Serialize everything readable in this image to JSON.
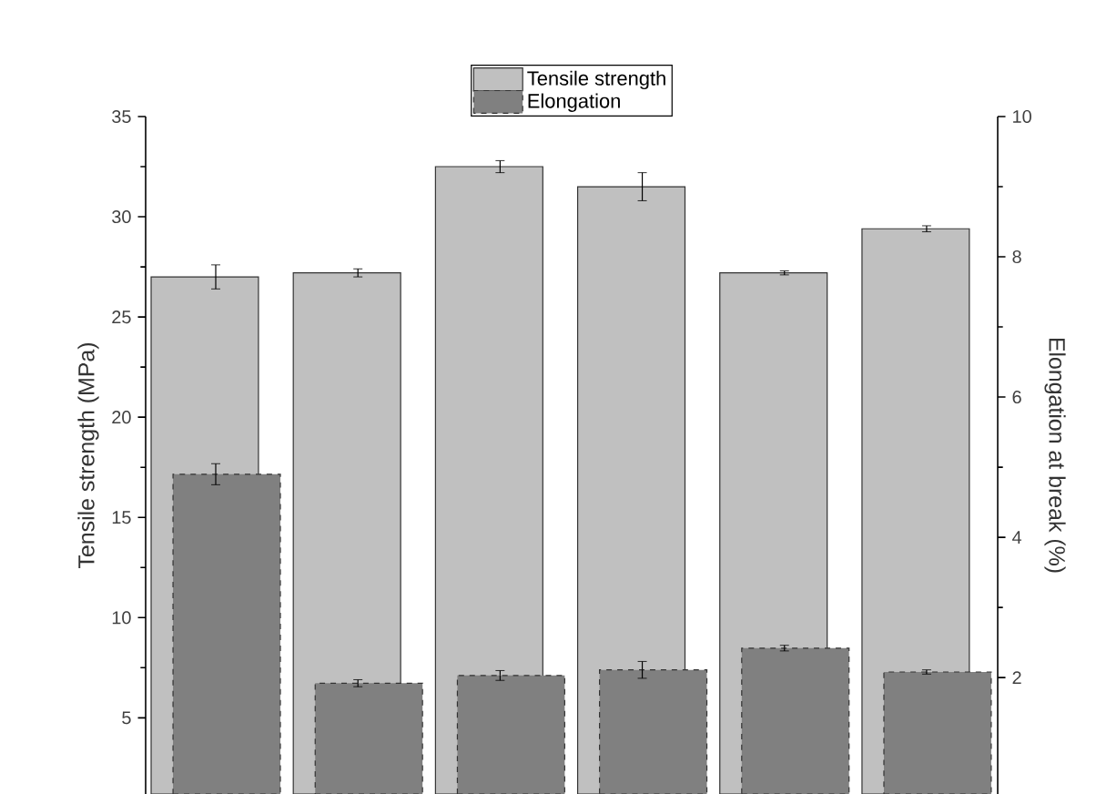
{
  "chart_data": {
    "type": "bar",
    "categories": [
      null,
      null,
      null,
      null,
      null,
      null
    ],
    "series": [
      {
        "name": "Tensile strength",
        "color": "#c0c0c0",
        "values": [
          27.0,
          27.2,
          32.5,
          31.5,
          27.2,
          29.4
        ],
        "errors": [
          0.6,
          0.2,
          0.3,
          0.7,
          0.1,
          0.15
        ]
      },
      {
        "name": "Elongation",
        "axis": "y2",
        "color": "#808080",
        "values": [
          4.9,
          1.92,
          2.03,
          2.11,
          2.42,
          2.08
        ],
        "errors": [
          0.15,
          0.05,
          0.07,
          0.12,
          0.04,
          0.03
        ]
      }
    ],
    "ylabel": "Tensile strength (MPa)",
    "y2label": "Elongation at break (%)",
    "ylim": [
      1.2,
      35
    ],
    "yticks": [
      5,
      10,
      15,
      20,
      25,
      30,
      35
    ],
    "y2lim": [
      0.34,
      10
    ],
    "y2ticks": [
      2,
      4,
      6,
      8,
      10
    ],
    "legend": "top"
  }
}
